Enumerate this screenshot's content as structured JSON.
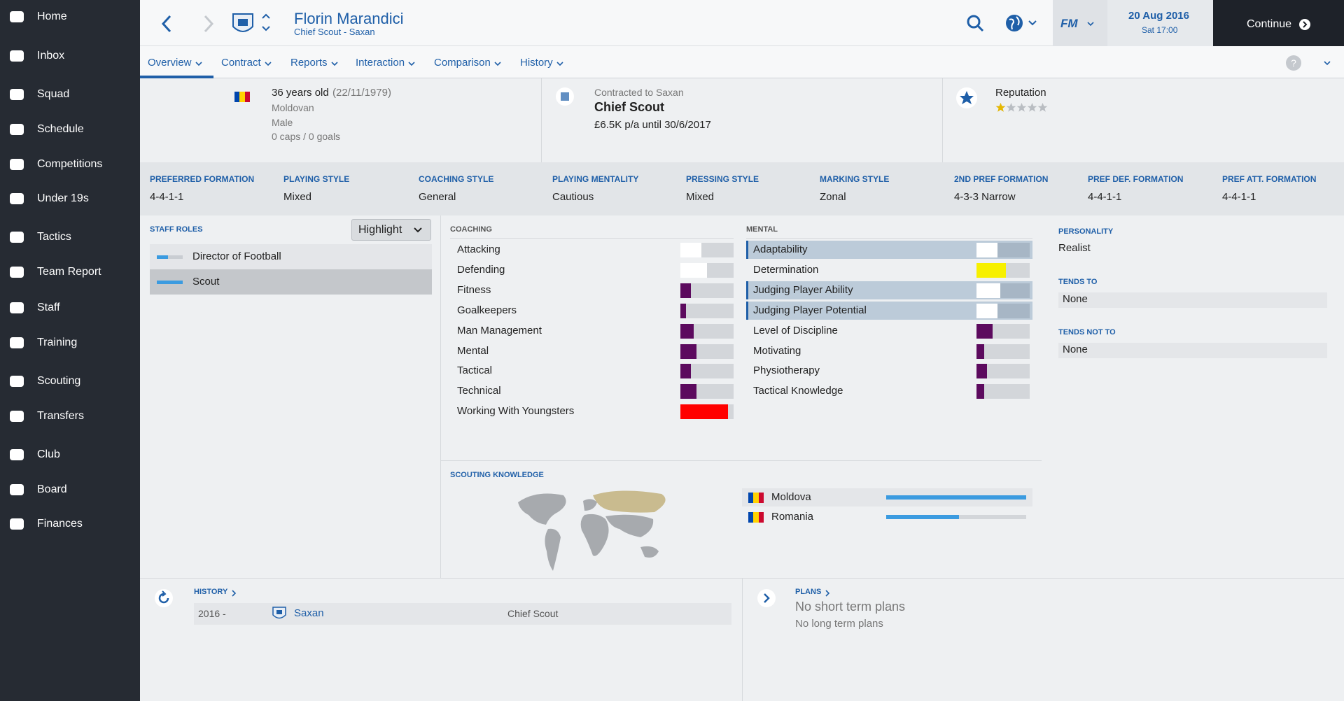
{
  "sidebar": {
    "items": [
      "Home",
      "Inbox",
      "Squad",
      "Schedule",
      "Competitions",
      "Under 19s",
      "Tactics",
      "Team Report",
      "Staff",
      "Training",
      "Scouting",
      "Transfers",
      "Club",
      "Board",
      "Finances"
    ]
  },
  "header": {
    "name": "Florin Marandici",
    "subtitle": "Chief Scout - Saxan",
    "logo": "FM",
    "date": "20 Aug 2016",
    "time": "Sat 17:00",
    "continue": "Continue"
  },
  "tabs": [
    "Overview",
    "Contract",
    "Reports",
    "Interaction",
    "Comparison",
    "History"
  ],
  "profile": {
    "age": "36 years old",
    "dob": "(22/11/1979)",
    "nationality": "Moldovan",
    "gender": "Male",
    "caps": "0 caps / 0 goals",
    "contract_label": "Contracted to Saxan",
    "role": "Chief Scout",
    "wage": "£6.5K p/a until 30/6/2017",
    "reputation_label": "Reputation",
    "reputation_stars": 1,
    "reputation_max": 5
  },
  "tactics": [
    {
      "label": "PREFERRED FORMATION",
      "value": "4-4-1-1"
    },
    {
      "label": "PLAYING STYLE",
      "value": "Mixed"
    },
    {
      "label": "COACHING STYLE",
      "value": "General"
    },
    {
      "label": "PLAYING MENTALITY",
      "value": "Cautious"
    },
    {
      "label": "PRESSING STYLE",
      "value": "Mixed"
    },
    {
      "label": "MARKING STYLE",
      "value": "Zonal"
    },
    {
      "label": "2ND PREF FORMATION",
      "value": "4-3-3 Narrow"
    },
    {
      "label": "PREF DEF. FORMATION",
      "value": "4-4-1-1"
    },
    {
      "label": "PREF ATT. FORMATION",
      "value": "4-4-1-1"
    }
  ],
  "staff_roles": {
    "title": "STAFF ROLES",
    "button": "Highlight",
    "roles": [
      "Director of Football",
      "Scout"
    ]
  },
  "attributes": {
    "range": [
      0,
      20
    ],
    "coaching": {
      "title": "COACHING",
      "items": [
        {
          "name": "Attacking",
          "value": 8,
          "color": "#ffffff"
        },
        {
          "name": "Defending",
          "value": 10,
          "color": "#ffffff"
        },
        {
          "name": "Fitness",
          "value": 4,
          "color": "#5c0a5e"
        },
        {
          "name": "Goalkeepers",
          "value": 2,
          "color": "#5c0a5e"
        },
        {
          "name": "Man Management",
          "value": 5,
          "color": "#5c0a5e"
        },
        {
          "name": "Mental",
          "value": 6,
          "color": "#5c0a5e"
        },
        {
          "name": "Tactical",
          "value": 4,
          "color": "#5c0a5e"
        },
        {
          "name": "Technical",
          "value": 6,
          "color": "#5c0a5e"
        },
        {
          "name": "Working With Youngsters",
          "value": 18,
          "color": "#ff0000"
        }
      ]
    },
    "mental": {
      "title": "MENTAL",
      "items": [
        {
          "name": "Adaptability",
          "value": 8,
          "color": "#ffffff",
          "highlight": true
        },
        {
          "name": "Determination",
          "value": 11,
          "color": "#f7f000"
        },
        {
          "name": "Judging Player Ability",
          "value": 9,
          "color": "#ffffff",
          "highlight": true
        },
        {
          "name": "Judging Player Potential",
          "value": 8,
          "color": "#ffffff",
          "highlight": true
        },
        {
          "name": "Level of Discipline",
          "value": 6,
          "color": "#5c0a5e"
        },
        {
          "name": "Motivating",
          "value": 3,
          "color": "#5c0a5e"
        },
        {
          "name": "Physiotherapy",
          "value": 4,
          "color": "#5c0a5e"
        },
        {
          "name": "Tactical Knowledge",
          "value": 3,
          "color": "#5c0a5e"
        }
      ]
    }
  },
  "personality": {
    "title": "PERSONALITY",
    "value": "Realist",
    "tends_to_title": "TENDS TO",
    "tends_to": "None",
    "tends_not_to_title": "TENDS NOT TO",
    "tends_not_to": "None"
  },
  "scouting": {
    "title": "SCOUTING KNOWLEDGE",
    "range": [
      0,
      100
    ],
    "color": "#3b9be0",
    "countries": [
      {
        "name": "Moldova",
        "value": 100
      },
      {
        "name": "Romania",
        "value": 52
      }
    ]
  },
  "history": {
    "title": "HISTORY",
    "rows": [
      [
        "2016 -",
        "Saxan",
        "Chief Scout"
      ]
    ]
  },
  "plans": {
    "title": "PLANS",
    "short": "No short term plans",
    "long": "No long term plans"
  }
}
